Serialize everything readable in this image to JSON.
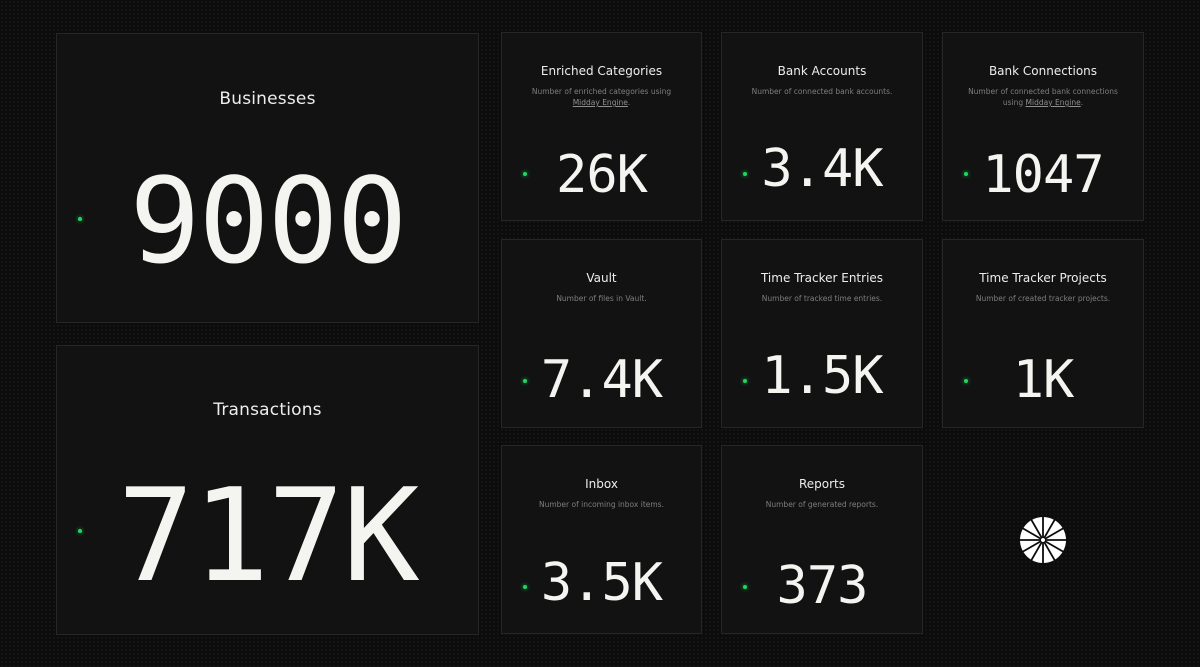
{
  "businesses": {
    "title": "Businesses",
    "value": "9000"
  },
  "transactions": {
    "title": "Transactions",
    "value": "717K"
  },
  "enriched_categories": {
    "title": "Enriched Categories",
    "desc_prefix": "Number of enriched categories using ",
    "desc_link": "Midday Engine",
    "desc_suffix": ".",
    "value": "26K"
  },
  "bank_accounts": {
    "title": "Bank Accounts",
    "desc": "Number of connected bank accounts.",
    "value": "3.4K"
  },
  "bank_connections": {
    "title": "Bank Connections",
    "desc_prefix": "Number of connected bank connections using ",
    "desc_link": "Midday Engine",
    "desc_suffix": ".",
    "value": "1047"
  },
  "vault": {
    "title": "Vault",
    "desc": "Number of files in Vault.",
    "value": "7.4K"
  },
  "time_tracker_entries": {
    "title": "Time Tracker Entries",
    "desc": "Number of tracked time entries.",
    "value": "1.5K"
  },
  "time_tracker_projects": {
    "title": "Time Tracker Projects",
    "desc": "Number of created tracker projects.",
    "value": "1K"
  },
  "inbox": {
    "title": "Inbox",
    "desc": "Number of incoming inbox items.",
    "value": "3.5K"
  },
  "reports": {
    "title": "Reports",
    "desc": "Number of generated reports.",
    "value": "373"
  },
  "logo": {
    "icon": "midday-logo-icon"
  },
  "colors": {
    "background": "#0c0c0c",
    "card": "#121212",
    "border": "#262626",
    "text": "#f4f4f0",
    "muted": "#7e7e7e",
    "live_dot": "#1ed760"
  }
}
